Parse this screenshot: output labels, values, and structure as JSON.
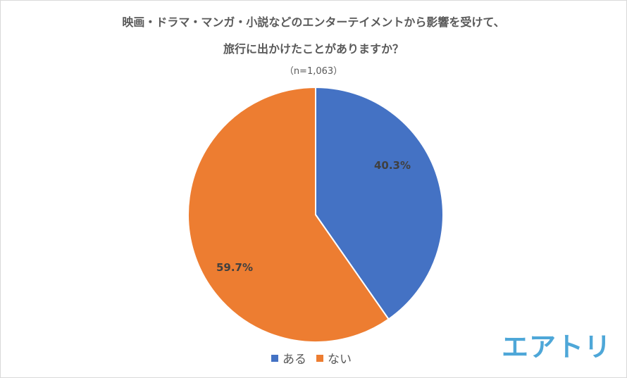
{
  "chart_data": {
    "type": "pie",
    "title_line1": "映画・ドラマ・マンガ・小説などのエンターテイメントから影響を受けて、",
    "title_line2": "旅行に出かけたことがありますか？",
    "subtitle": "（n=1,063）",
    "categories": [
      "ある",
      "ない"
    ],
    "values": [
      40.3,
      59.7
    ],
    "labels": [
      "40.3%",
      "59.7%"
    ],
    "colors": [
      "#4472c4",
      "#ed7d31"
    ],
    "start": "top, clockwise",
    "legend_position": "bottom"
  },
  "logo": {
    "text": "エアトリ",
    "color": "#4ea7d8"
  }
}
